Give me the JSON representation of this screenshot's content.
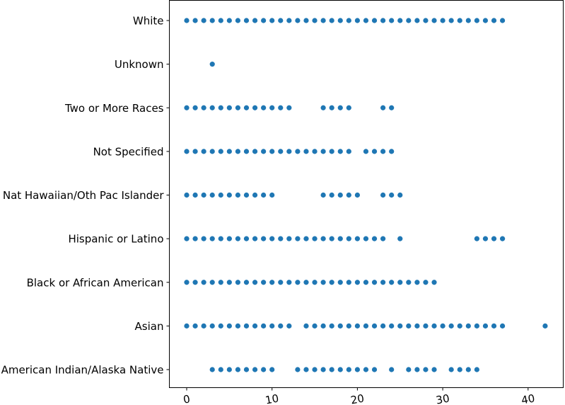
{
  "chart_data": {
    "type": "scatter",
    "title": "",
    "xlabel": "",
    "ylabel": "",
    "xlim": [
      -2,
      44
    ],
    "x_ticks": [
      0,
      10,
      20,
      30,
      40
    ],
    "categories": [
      "American Indian/Alaska Native",
      "Asian",
      "Black or African American",
      "Hispanic or Latino",
      "Nat Hawaiian/Oth Pac Islander",
      "Not Specified",
      "Two or More Races",
      "Unknown",
      "White"
    ],
    "grid": false,
    "legend": "none",
    "marker_color": "#1f77b4",
    "series": [
      {
        "category": "American Indian/Alaska Native",
        "x": [
          3,
          4,
          5,
          6,
          7,
          8,
          9,
          10,
          13,
          14,
          15,
          16,
          17,
          18,
          19,
          20,
          21,
          22,
          24,
          26,
          27,
          28,
          29,
          31,
          32,
          33,
          34
        ]
      },
      {
        "category": "Asian",
        "x": [
          0,
          1,
          2,
          3,
          4,
          5,
          6,
          7,
          8,
          9,
          10,
          11,
          12,
          14,
          15,
          16,
          17,
          18,
          19,
          20,
          21,
          22,
          23,
          24,
          25,
          26,
          27,
          28,
          29,
          30,
          31,
          32,
          33,
          34,
          35,
          36,
          37,
          42
        ]
      },
      {
        "category": "Black or African American",
        "x": [
          0,
          1,
          2,
          3,
          4,
          5,
          6,
          7,
          8,
          9,
          10,
          11,
          12,
          13,
          14,
          15,
          16,
          17,
          18,
          19,
          20,
          21,
          22,
          23,
          24,
          25,
          26,
          27,
          28,
          29
        ]
      },
      {
        "category": "Hispanic or Latino",
        "x": [
          0,
          1,
          2,
          3,
          4,
          5,
          6,
          7,
          8,
          9,
          10,
          11,
          12,
          13,
          14,
          15,
          16,
          17,
          18,
          19,
          20,
          21,
          22,
          23,
          25,
          34,
          35,
          36,
          37
        ]
      },
      {
        "category": "Nat Hawaiian/Oth Pac Islander",
        "x": [
          0,
          1,
          2,
          3,
          4,
          5,
          6,
          7,
          8,
          9,
          10,
          16,
          17,
          18,
          19,
          20,
          23,
          24,
          25
        ]
      },
      {
        "category": "Not Specified",
        "x": [
          0,
          1,
          2,
          3,
          4,
          5,
          6,
          7,
          8,
          9,
          10,
          11,
          12,
          13,
          14,
          15,
          16,
          17,
          18,
          19,
          21,
          22,
          23,
          24
        ]
      },
      {
        "category": "Two or More Races",
        "x": [
          0,
          1,
          2,
          3,
          4,
          5,
          6,
          7,
          8,
          9,
          10,
          11,
          12,
          16,
          17,
          18,
          19,
          23,
          24
        ]
      },
      {
        "category": "Unknown",
        "x": [
          3
        ]
      },
      {
        "category": "White",
        "x": [
          0,
          1,
          2,
          3,
          4,
          5,
          6,
          7,
          8,
          9,
          10,
          11,
          12,
          13,
          14,
          15,
          16,
          17,
          18,
          19,
          20,
          21,
          22,
          23,
          24,
          25,
          26,
          27,
          28,
          29,
          30,
          31,
          32,
          33,
          34,
          35,
          36,
          37
        ]
      }
    ]
  }
}
